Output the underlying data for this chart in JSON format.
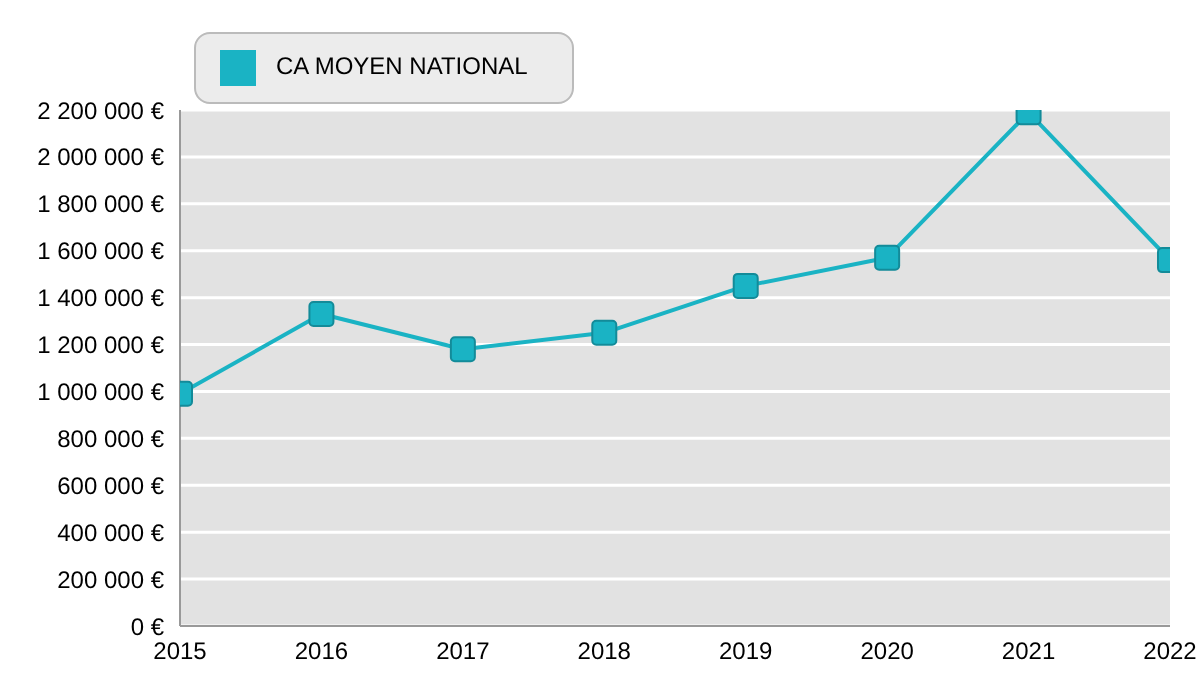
{
  "chart_data": {
    "type": "line",
    "x": [
      2015,
      2016,
      2017,
      2018,
      2019,
      2020,
      2021,
      2022
    ],
    "series": [
      {
        "name": "CA MOYEN NATIONAL",
        "color": "#1ab3c4",
        "values": [
          990000,
          1330000,
          1180000,
          1250000,
          1450000,
          1570000,
          2190000,
          1560000
        ]
      }
    ],
    "xlim": [
      2015,
      2022
    ],
    "xticks": [
      2015,
      2016,
      2017,
      2018,
      2019,
      2020,
      2021,
      2022
    ],
    "ylim": [
      0,
      2200000
    ],
    "yticks": [
      {
        "value": 0,
        "label": "0 €"
      },
      {
        "value": 200000,
        "label": "200 000 €"
      },
      {
        "value": 400000,
        "label": "400 000 €"
      },
      {
        "value": 600000,
        "label": "600 000 €"
      },
      {
        "value": 800000,
        "label": "800 000 €"
      },
      {
        "value": 1000000,
        "label": "1 000 000 €"
      },
      {
        "value": 1200000,
        "label": "1 200 000 €"
      },
      {
        "value": 1400000,
        "label": "1 400 000 €"
      },
      {
        "value": 1600000,
        "label": "1 600 000 €"
      },
      {
        "value": 1800000,
        "label": "1 800 000 €"
      },
      {
        "value": 2000000,
        "label": "2 000 000 €"
      },
      {
        "value": 2200000,
        "label": "2 200 000 €"
      }
    ],
    "grid": "y",
    "legend": "top left",
    "marker": "square",
    "line_style": "solid"
  }
}
